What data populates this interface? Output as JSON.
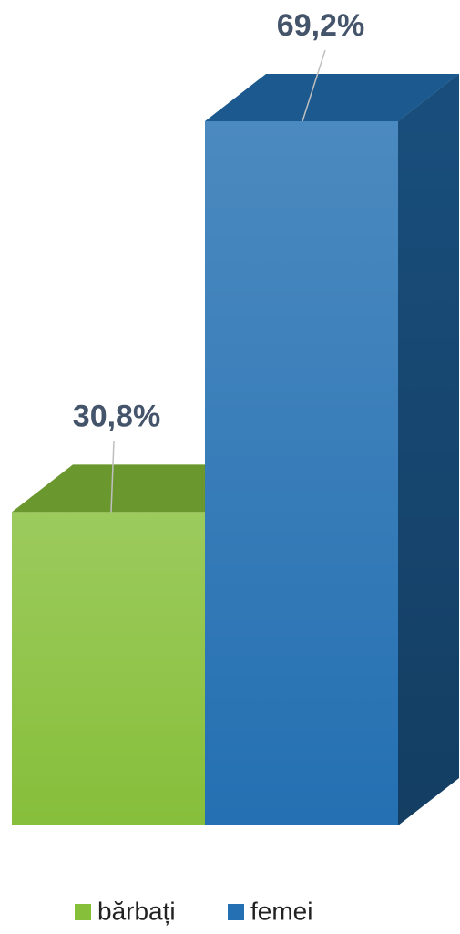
{
  "chart_data": {
    "type": "bar3d",
    "categories": [
      null
    ],
    "series": [
      {
        "name": "bărbați",
        "color": "#86bf3a",
        "values": [
          30.8
        ],
        "value_labels": [
          "30,8%"
        ]
      },
      {
        "name": "femei",
        "color": "#2470b2",
        "values": [
          69.2
        ],
        "value_labels": [
          "69,2%"
        ]
      }
    ],
    "legend": "bottom"
  }
}
